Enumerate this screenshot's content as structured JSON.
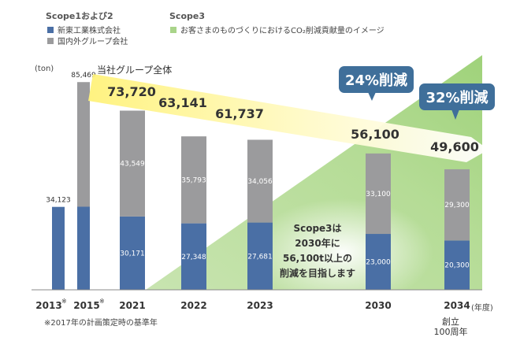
{
  "legend": {
    "group1_title": "Scope1および2",
    "group2_title": "Scope3",
    "items": [
      {
        "label": "新東工業株式会社",
        "color": "#4a6fa5"
      },
      {
        "label": "国内外グループ会社",
        "color": "#9b9b9d"
      },
      {
        "label": "お客さまのものづくりにおけるCO₂削減貢献量のイメージ",
        "color": "#a9d48a"
      }
    ]
  },
  "chart_data": {
    "type": "bar",
    "stacked": true,
    "unit": "(ton)",
    "xunit": "(年度)",
    "categories": [
      "2013",
      "2015",
      "2021",
      "2022",
      "2023",
      "2030",
      "2034"
    ],
    "category_marks": [
      "※",
      "※",
      "",
      "",
      "",
      "",
      ""
    ],
    "series": [
      {
        "name": "新東工業株式会社",
        "color": "#4a6fa5",
        "values": [
          34123,
          null,
          30171,
          27348,
          27681,
          23000,
          20300
        ],
        "labels": [
          "34,123",
          "",
          "30,171",
          "27,348",
          "27,681",
          "23,000",
          "20,300"
        ]
      },
      {
        "name": "国内外グループ会社",
        "color": "#9b9b9d",
        "values": [
          null,
          null,
          43549,
          35793,
          34056,
          33100,
          29300
        ],
        "labels": [
          "",
          "",
          "43,549",
          "35,793",
          "34,056",
          "33,100",
          "29,300"
        ]
      }
    ],
    "base_2015": {
      "total": 85469,
      "label": "85,469",
      "lower_share": 0.4
    },
    "totals": [
      {
        "category": "2021",
        "label": "73,720",
        "value": 73720
      },
      {
        "category": "2022",
        "label": "63,141",
        "value": 63141
      },
      {
        "category": "2023",
        "label": "61,737",
        "value": 61737
      },
      {
        "category": "2030",
        "label": "56,100",
        "value": 56100
      },
      {
        "category": "2034",
        "label": "49,600",
        "value": 49600
      }
    ],
    "totals_caption": "当社グループ全体",
    "reductions": [
      {
        "category": "2030",
        "label": "24%削減"
      },
      {
        "category": "2034",
        "label": "32%削減"
      }
    ],
    "scope3_note": [
      "Scope3は",
      "2030年に",
      "56,100t以上の",
      "削減を目指します"
    ],
    "footnote": "※2017年の計画策定時の基準年",
    "milestone": [
      "創立",
      "100周年"
    ]
  }
}
